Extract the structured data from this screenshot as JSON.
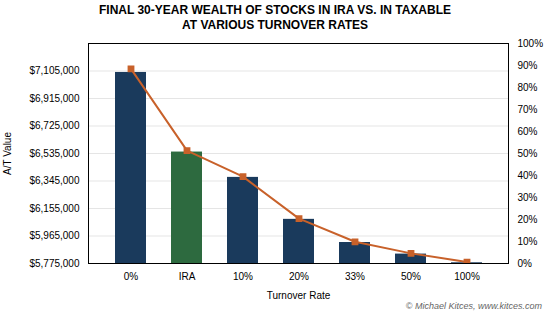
{
  "chart_data": {
    "type": "bar",
    "title": "FINAL 30-YEAR WEALTH OF STOCKS IN IRA VS. IN TAXABLE",
    "subtitle": "AT VARIOUS TURNOVER RATES",
    "xlabel": "Turnover Rate",
    "ylabel": "A/T Value",
    "caption": "© Michael Kitces, www.kitces.com",
    "categories": [
      "0%",
      "IRA",
      "10%",
      "20%",
      "33%",
      "50%",
      "100%"
    ],
    "series": [
      {
        "type": "bar",
        "colors": [
          "#1a3a5c",
          "#2d6a3f",
          "#1a3a5c",
          "#1a3a5c",
          "#1a3a5c",
          "#1a3a5c",
          "#1a3a5c"
        ],
        "values": [
          7095000,
          6545000,
          6370000,
          6080000,
          5920000,
          5840000,
          5780000
        ]
      },
      {
        "type": "line",
        "color": "#c8612a",
        "marker": "square",
        "values": [
          7120000,
          6555000,
          6375000,
          6085000,
          5925000,
          5845000,
          5785000
        ]
      }
    ],
    "ylim": [
      5775000,
      7295000
    ],
    "yticks": [
      {
        "value": 5775000,
        "label": "$5,775,000"
      },
      {
        "value": 5965000,
        "label": "$5,965,000"
      },
      {
        "value": 6155000,
        "label": "$6,155,000"
      },
      {
        "value": 6345000,
        "label": "$6,345,000"
      },
      {
        "value": 6535000,
        "label": "$6,535,000"
      },
      {
        "value": 6725000,
        "label": "$6,725,000"
      },
      {
        "value": 6915000,
        "label": "$6,915,000"
      },
      {
        "value": 7105000,
        "label": "$7,105,000"
      }
    ],
    "y2lim": [
      0,
      100
    ],
    "y2ticks": [
      {
        "value": 0,
        "label": "0%"
      },
      {
        "value": 10,
        "label": "10%"
      },
      {
        "value": 20,
        "label": "20%"
      },
      {
        "value": 30,
        "label": "30%"
      },
      {
        "value": 40,
        "label": "40%"
      },
      {
        "value": 50,
        "label": "50%"
      },
      {
        "value": 60,
        "label": "60%"
      },
      {
        "value": 70,
        "label": "70%"
      },
      {
        "value": 80,
        "label": "80%"
      },
      {
        "value": 90,
        "label": "90%"
      },
      {
        "value": 100,
        "label": "100%"
      }
    ],
    "grid": true
  }
}
